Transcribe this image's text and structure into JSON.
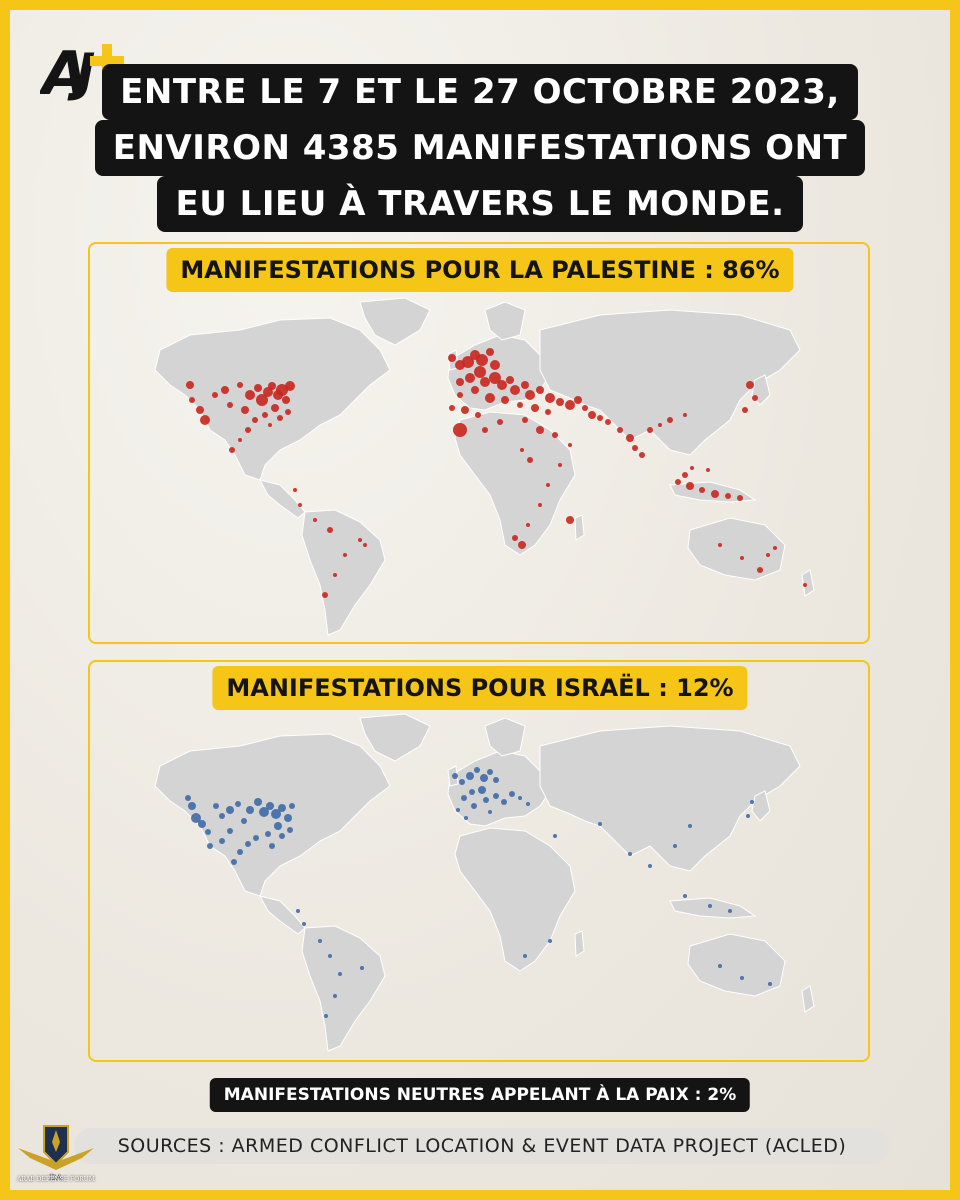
{
  "headline": {
    "lines": [
      "ENTRE LE 7 ET LE 27 OCTOBRE 2023,",
      "ENVIRON 4385 MANIFESTATIONS ONT",
      "EU LIEU À TRAVERS LE MONDE."
    ]
  },
  "panels": [
    {
      "label": "MANIFESTATIONS POUR LA PALESTINE : 86%",
      "dot_color": "#c8261e"
    },
    {
      "label": "MANIFESTATIONS POUR ISRAËL : 12%",
      "dot_color": "#3f6aa6"
    }
  ],
  "neutral_label": "MANIFESTATIONS NEUTRES APPELANT À LA PAIX : 2%",
  "sources": "SOURCES : ARMED CONFLICT LOCATION & EVENT DATA PROJECT (ACLED)",
  "logo_text": "AJ+",
  "badge": {
    "initials": "DA",
    "name": "ARAB DEFENSE FORUM"
  },
  "colors": {
    "accent": "#f5c518",
    "land": "#d4d4d4",
    "border": "#ffffff",
    "ink": "#141414"
  }
}
